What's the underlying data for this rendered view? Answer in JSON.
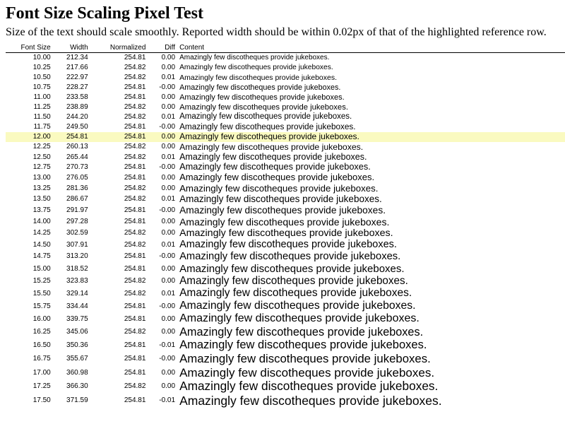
{
  "header": {
    "title": "Font Size Scaling Pixel Test",
    "subtitle": "Size of the text should scale smoothly. Reported width should be within 0.02px of that of the highlighted reference row."
  },
  "table": {
    "columns": [
      "Font Size",
      "Width",
      "Normalized",
      "Diff",
      "Content"
    ],
    "highlighted_row": 8,
    "rows": [
      [
        "10.00",
        "212.34",
        "254.81",
        "0.00",
        "Amazingly few discotheques provide jukeboxes."
      ],
      [
        "10.25",
        "217.66",
        "254.82",
        "0.00",
        "Amazingly few discotheques provide jukeboxes."
      ],
      [
        "10.50",
        "222.97",
        "254.82",
        "0.01",
        "Amazingly few discotheques provide jukeboxes."
      ],
      [
        "10.75",
        "228.27",
        "254.81",
        "-0.00",
        "Amazingly few discotheques provide jukeboxes."
      ],
      [
        "11.00",
        "233.58",
        "254.81",
        "0.00",
        "Amazingly few discotheques provide jukeboxes."
      ],
      [
        "11.25",
        "238.89",
        "254.82",
        "0.00",
        "Amazingly few discotheques provide jukeboxes."
      ],
      [
        "11.50",
        "244.20",
        "254.82",
        "0.01",
        "Amazingly few discotheques provide jukeboxes."
      ],
      [
        "11.75",
        "249.50",
        "254.81",
        "-0.00",
        "Amazingly few discotheques provide jukeboxes."
      ],
      [
        "12.00",
        "254.81",
        "254.81",
        "0.00",
        "Amazingly few discotheques provide jukeboxes."
      ],
      [
        "12.25",
        "260.13",
        "254.82",
        "0.00",
        "Amazingly few discotheques provide jukeboxes."
      ],
      [
        "12.50",
        "265.44",
        "254.82",
        "0.01",
        "Amazingly few discotheques provide jukeboxes."
      ],
      [
        "12.75",
        "270.73",
        "254.81",
        "-0.00",
        "Amazingly few discotheques provide jukeboxes."
      ],
      [
        "13.00",
        "276.05",
        "254.81",
        "0.00",
        "Amazingly few discotheques provide jukeboxes."
      ],
      [
        "13.25",
        "281.36",
        "254.82",
        "0.00",
        "Amazingly few discotheques provide jukeboxes."
      ],
      [
        "13.50",
        "286.67",
        "254.82",
        "0.01",
        "Amazingly few discotheques provide jukeboxes."
      ],
      [
        "13.75",
        "291.97",
        "254.81",
        "-0.00",
        "Amazingly few discotheques provide jukeboxes."
      ],
      [
        "14.00",
        "297.28",
        "254.81",
        "0.00",
        "Amazingly few discotheques provide jukeboxes."
      ],
      [
        "14.25",
        "302.59",
        "254.82",
        "0.00",
        "Amazingly few discotheques provide jukeboxes."
      ],
      [
        "14.50",
        "307.91",
        "254.82",
        "0.01",
        "Amazingly few discotheques provide jukeboxes."
      ],
      [
        "14.75",
        "313.20",
        "254.81",
        "-0.00",
        "Amazingly few discotheques provide jukeboxes."
      ],
      [
        "15.00",
        "318.52",
        "254.81",
        "0.00",
        "Amazingly few discotheques provide jukeboxes."
      ],
      [
        "15.25",
        "323.83",
        "254.82",
        "0.00",
        "Amazingly few discotheques provide jukeboxes."
      ],
      [
        "15.50",
        "329.14",
        "254.82",
        "0.01",
        "Amazingly few discotheques provide jukeboxes."
      ],
      [
        "15.75",
        "334.44",
        "254.81",
        "-0.00",
        "Amazingly few discotheques provide jukeboxes."
      ],
      [
        "16.00",
        "339.75",
        "254.81",
        "0.00",
        "Amazingly few discotheques provide jukeboxes."
      ],
      [
        "16.25",
        "345.06",
        "254.82",
        "0.00",
        "Amazingly few discotheques provide jukeboxes."
      ],
      [
        "16.50",
        "350.36",
        "254.81",
        "-0.01",
        "Amazingly few discotheques provide jukeboxes."
      ],
      [
        "16.75",
        "355.67",
        "254.81",
        "-0.00",
        "Amazingly few discotheques provide jukeboxes."
      ],
      [
        "17.00",
        "360.98",
        "254.81",
        "0.00",
        "Amazingly few discotheques provide jukeboxes."
      ],
      [
        "17.25",
        "366.30",
        "254.82",
        "0.00",
        "Amazingly few discotheques provide jukeboxes."
      ],
      [
        "17.50",
        "371.59",
        "254.81",
        "-0.01",
        "Amazingly few discotheques provide jukeboxes."
      ]
    ]
  }
}
